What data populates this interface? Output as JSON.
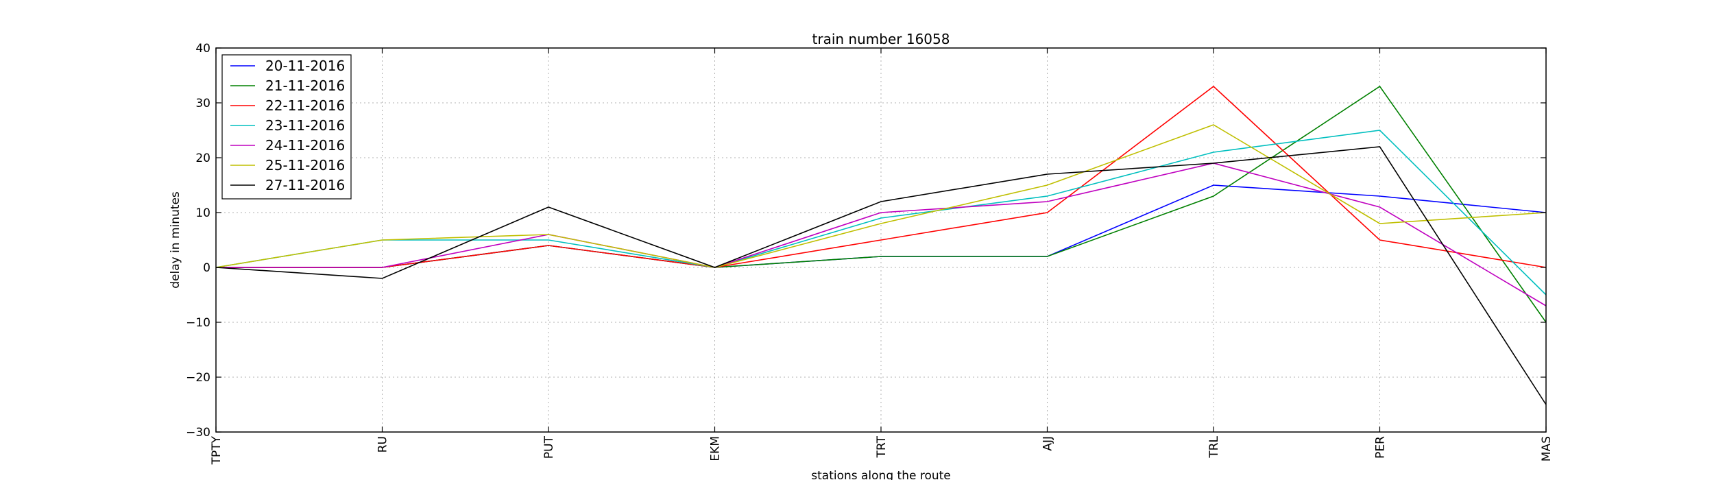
{
  "chart_data": {
    "type": "line",
    "title": "train number 16058",
    "xlabel": "stations along the route",
    "ylabel": "delay in minutes",
    "categories": [
      "TPTY",
      "RU",
      "PUT",
      "EKM",
      "TRT",
      "AJJ",
      "TRL",
      "PER",
      "MAS"
    ],
    "ylim": [
      -30,
      40
    ],
    "yticks": [
      -30,
      -20,
      -10,
      0,
      10,
      20,
      30,
      40
    ],
    "grid": true,
    "legend_position": "top-left",
    "series": [
      {
        "name": "20-11-2016",
        "color": "#0000ff",
        "values": [
          0,
          0,
          4,
          0,
          2,
          2,
          15,
          13,
          10
        ]
      },
      {
        "name": "21-11-2016",
        "color": "#008000",
        "values": [
          0,
          0,
          4,
          0,
          2,
          2,
          13,
          33,
          -10
        ]
      },
      {
        "name": "22-11-2016",
        "color": "#ff0000",
        "values": [
          0,
          0,
          4,
          0,
          5,
          10,
          33,
          5,
          0
        ]
      },
      {
        "name": "23-11-2016",
        "color": "#00bfbf",
        "values": [
          0,
          5,
          5,
          0,
          9,
          13,
          21,
          25,
          -5
        ]
      },
      {
        "name": "24-11-2016",
        "color": "#bf00bf",
        "values": [
          0,
          0,
          6,
          0,
          10,
          12,
          19,
          11,
          -7
        ]
      },
      {
        "name": "25-11-2016",
        "color": "#bfbf00",
        "values": [
          0,
          5,
          6,
          0,
          8,
          15,
          26,
          8,
          10
        ]
      },
      {
        "name": "27-11-2016",
        "color": "#000000",
        "values": [
          0,
          -2,
          11,
          0,
          12,
          17,
          19,
          22,
          -25
        ]
      }
    ]
  }
}
